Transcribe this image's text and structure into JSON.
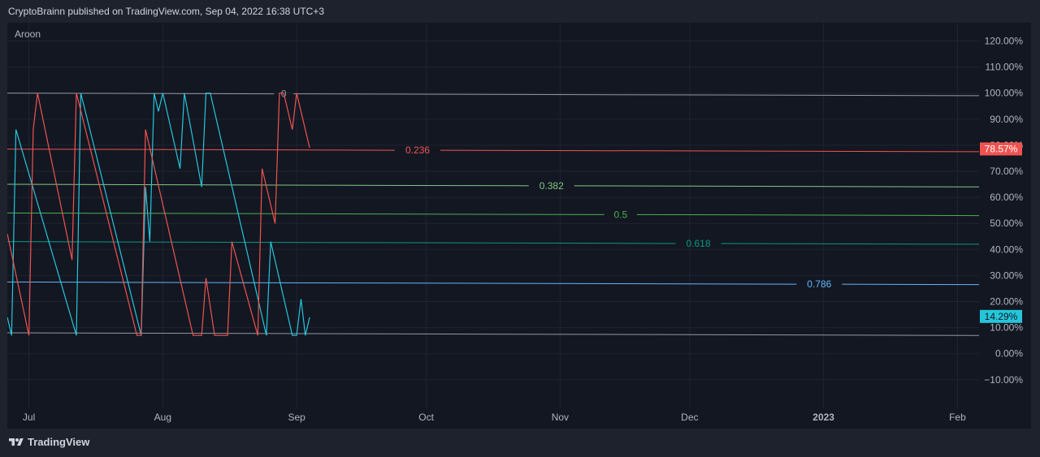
{
  "header": {
    "text": "CryptoBrainn published on TradingView.com, Sep 04, 2022 16:38 UTC+3"
  },
  "indicator": {
    "name": "Aroon"
  },
  "footer": {
    "brand": "TradingView",
    "logo_icon": "tradingview-logo-icon"
  },
  "colors": {
    "aroon_up": "#26c6da",
    "aroon_down": "#ef5350",
    "fib_0": "#9598a1",
    "fib_0236": "#f05350",
    "fib_0382": "#81c784",
    "fib_05": "#4caf50",
    "fib_0618": "#089981",
    "fib_0786": "#64b5f6",
    "fib_1": "#9598a1",
    "grid": "#1f2433",
    "axis_text": "#b2b5be"
  },
  "chart_data": {
    "type": "line",
    "ylim": [
      -15,
      125
    ],
    "y_ticks": [
      "120.00%",
      "110.00%",
      "100.00%",
      "90.00%",
      "80.00%",
      "70.00%",
      "60.00%",
      "50.00%",
      "40.00%",
      "30.00%",
      "20.00%",
      "10.00%",
      "0.00%",
      "−10.00%"
    ],
    "y_tick_values": [
      120,
      110,
      100,
      90,
      80,
      70,
      60,
      50,
      40,
      30,
      20,
      10,
      0,
      -10
    ],
    "x_ticks": [
      {
        "label": "Jul",
        "date": "2022-07-01"
      },
      {
        "label": "Aug",
        "date": "2022-08-01"
      },
      {
        "label": "Sep",
        "date": "2022-09-01"
      },
      {
        "label": "Oct",
        "date": "2022-10-01"
      },
      {
        "label": "Nov",
        "date": "2022-11-01"
      },
      {
        "label": "Dec",
        "date": "2022-12-01"
      },
      {
        "label": "2023",
        "date": "2023-01-01"
      },
      {
        "label": "Feb",
        "date": "2023-02-01"
      }
    ],
    "x_range": [
      "2022-06-26",
      "2023-02-06"
    ],
    "last_values": [
      {
        "label": "78.57%",
        "value": 78.57,
        "series": "aroon_down"
      },
      {
        "label": "14.29%",
        "value": 14.29,
        "series": "aroon_up"
      }
    ],
    "fib_levels": [
      {
        "label": "0",
        "start": [
          "2022-06-26",
          100
        ],
        "end": [
          "2023-02-06",
          99
        ],
        "label_date": "2022-08-29",
        "color_key": "fib_0"
      },
      {
        "label": "0.236",
        "start": [
          "2022-06-26",
          78.5
        ],
        "end": [
          "2023-02-06",
          77.5
        ],
        "label_date": "2022-09-29",
        "color_key": "fib_0236"
      },
      {
        "label": "0.382",
        "start": [
          "2022-06-26",
          65
        ],
        "end": [
          "2023-02-06",
          64
        ],
        "label_date": "2022-10-30",
        "color_key": "fib_0382"
      },
      {
        "label": "0.5",
        "start": [
          "2022-06-26",
          54
        ],
        "end": [
          "2023-02-06",
          53
        ],
        "label_date": "2022-11-15",
        "color_key": "fib_05"
      },
      {
        "label": "0.618",
        "start": [
          "2022-06-26",
          43
        ],
        "end": [
          "2023-02-06",
          42
        ],
        "label_date": "2022-12-03",
        "color_key": "fib_0618"
      },
      {
        "label": "0.786",
        "start": [
          "2022-06-26",
          27.5
        ],
        "end": [
          "2023-02-06",
          26.5
        ],
        "label_date": "2022-12-31",
        "color_key": "fib_0786"
      },
      {
        "label": "",
        "start": [
          "2022-06-26",
          8
        ],
        "end": [
          "2023-02-06",
          7
        ],
        "label_date": "",
        "color_key": "fib_1"
      }
    ],
    "series": [
      {
        "name": "",
        "color_key": "aroon_up",
        "points": [
          [
            "2022-06-26",
            14
          ],
          [
            "2022-06-27",
            7
          ],
          [
            "2022-06-28",
            86
          ],
          [
            "2022-07-12",
            7
          ],
          [
            "2022-07-13",
            100
          ],
          [
            "2022-07-27",
            7
          ],
          [
            "2022-07-28",
            64
          ],
          [
            "2022-07-29",
            43
          ],
          [
            "2022-07-30",
            100
          ],
          [
            "2022-07-31",
            93
          ],
          [
            "2022-08-01",
            100
          ],
          [
            "2022-08-05",
            71
          ],
          [
            "2022-08-06",
            100
          ],
          [
            "2022-08-10",
            64
          ],
          [
            "2022-08-11",
            100
          ],
          [
            "2022-08-12",
            100
          ],
          [
            "2022-08-25",
            7
          ],
          [
            "2022-08-26",
            43
          ],
          [
            "2022-08-31",
            7
          ],
          [
            "2022-09-01",
            7
          ],
          [
            "2022-09-02",
            21
          ],
          [
            "2022-09-03",
            7
          ],
          [
            "2022-09-04",
            14
          ]
        ]
      },
      {
        "name": "",
        "color_key": "aroon_down",
        "points": [
          [
            "2022-06-26",
            46
          ],
          [
            "2022-07-01",
            7
          ],
          [
            "2022-07-02",
            86
          ],
          [
            "2022-07-03",
            100
          ],
          [
            "2022-07-11",
            36
          ],
          [
            "2022-07-12",
            100
          ],
          [
            "2022-07-26",
            7
          ],
          [
            "2022-07-27",
            7
          ],
          [
            "2022-07-28",
            86
          ],
          [
            "2022-08-08",
            7
          ],
          [
            "2022-08-10",
            7
          ],
          [
            "2022-08-11",
            29
          ],
          [
            "2022-08-13",
            7
          ],
          [
            "2022-08-16",
            7
          ],
          [
            "2022-08-17",
            43
          ],
          [
            "2022-08-23",
            7
          ],
          [
            "2022-08-24",
            71
          ],
          [
            "2022-08-27",
            50
          ],
          [
            "2022-08-28",
            100
          ],
          [
            "2022-08-29",
            100
          ],
          [
            "2022-08-31",
            86
          ],
          [
            "2022-09-01",
            100
          ],
          [
            "2022-09-04",
            79
          ]
        ]
      }
    ]
  }
}
